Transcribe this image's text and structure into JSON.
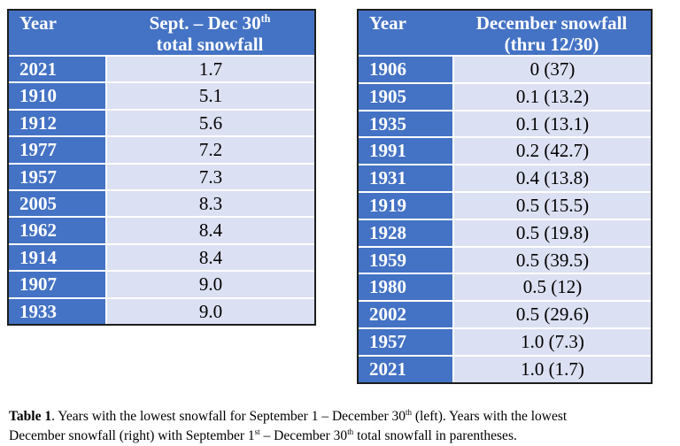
{
  "colors": {
    "header_blue": "#4472C4",
    "row_light": "#DBE0F2",
    "border_dark": "#1d1d1d",
    "gridline": "#ffffff",
    "header_text": "#ffffff",
    "value_text": "#000000"
  },
  "left_table": {
    "header": {
      "col1": "Year",
      "col2_line1_main": "Sept. – Dec 30",
      "col2_line1_sup": "th",
      "col2_line2": "total snowfall"
    },
    "rows": [
      {
        "year": "2021",
        "value": "1.7"
      },
      {
        "year": "1910",
        "value": "5.1"
      },
      {
        "year": "1912",
        "value": "5.6"
      },
      {
        "year": "1977",
        "value": "7.2"
      },
      {
        "year": "1957",
        "value": "7.3"
      },
      {
        "year": "2005",
        "value": "8.3"
      },
      {
        "year": "1962",
        "value": "8.4"
      },
      {
        "year": "1914",
        "value": "8.4"
      },
      {
        "year": "1907",
        "value": "9.0"
      },
      {
        "year": "1933",
        "value": "9.0"
      }
    ]
  },
  "right_table": {
    "header": {
      "col1": "Year",
      "col2_line1": "December snowfall",
      "col2_line2": "(thru 12/30)"
    },
    "rows": [
      {
        "year": "1906",
        "value": "0 (37)"
      },
      {
        "year": "1905",
        "value": "0.1 (13.2)"
      },
      {
        "year": "1935",
        "value": "0.1 (13.1)"
      },
      {
        "year": "1991",
        "value": "0.2 (42.7)"
      },
      {
        "year": "1931",
        "value": "0.4 (13.8)"
      },
      {
        "year": "1919",
        "value": "0.5 (15.5)"
      },
      {
        "year": "1928",
        "value": "0.5 (19.8)"
      },
      {
        "year": "1959",
        "value": "0.5 (39.5)"
      },
      {
        "year": "1980",
        "value": "0.5 (12)"
      },
      {
        "year": "2002",
        "value": "0.5 (29.6)"
      },
      {
        "year": "1957",
        "value": "1.0 (7.3)"
      },
      {
        "year": "2021",
        "value": "1.0 (1.7)"
      }
    ]
  },
  "caption": {
    "label": "Table 1",
    "line1_a": ". Years with the lowest snowfall for September 1 – December 30",
    "line1_sup": "th",
    "line1_b": " (left). Years with the lowest",
    "line2_a": "December snowfall (right) with September 1",
    "line2_sup1": "st",
    "line2_b": " – December 30",
    "line2_sup2": "th",
    "line2_c": " total snowfall in parentheses."
  }
}
